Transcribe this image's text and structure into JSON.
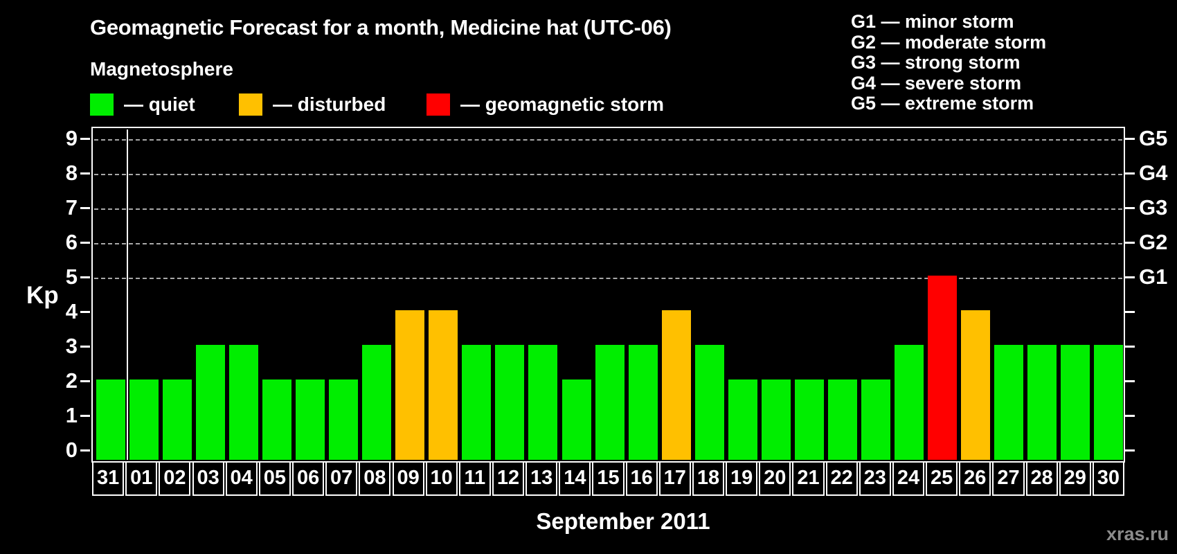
{
  "header": {
    "title": "Geomagnetic Forecast for a month, Medicine hat (UTC-06)"
  },
  "legend": {
    "heading": "Magnetosphere",
    "items": [
      {
        "key": "quiet",
        "label": "— quiet",
        "color": "#00ee00"
      },
      {
        "key": "disturbed",
        "label": "— disturbed",
        "color": "#ffc000"
      },
      {
        "key": "storm",
        "label": "— geomagnetic storm",
        "color": "#ff0000"
      }
    ]
  },
  "storm_scale_legend": {
    "items": [
      "G1 — minor storm",
      "G2 — moderate storm",
      "G3 — strong storm",
      "G4 — severe storm",
      "G5 — extreme storm"
    ]
  },
  "watermark": "xras.ru",
  "chart_data": {
    "type": "bar",
    "title": "Geomagnetic Forecast for a month, Medicine hat (UTC-06)",
    "xlabel": "September 2011",
    "ylabel": "Kp",
    "ylim": [
      0,
      9
    ],
    "y_ticks": [
      0,
      1,
      2,
      3,
      4,
      5,
      6,
      7,
      8,
      9
    ],
    "gridlines_at": [
      5,
      6,
      7,
      8,
      9
    ],
    "grid_style": "dashed horizontal lines at storm levels only",
    "right_axis_labels": [
      {
        "value": 5,
        "label": "G1"
      },
      {
        "value": 6,
        "label": "G2"
      },
      {
        "value": 7,
        "label": "G3"
      },
      {
        "value": 8,
        "label": "G4"
      },
      {
        "value": 9,
        "label": "G5"
      }
    ],
    "categories": [
      "31",
      "01",
      "02",
      "03",
      "04",
      "05",
      "06",
      "07",
      "08",
      "09",
      "10",
      "11",
      "12",
      "13",
      "14",
      "15",
      "16",
      "17",
      "18",
      "19",
      "20",
      "21",
      "22",
      "23",
      "24",
      "25",
      "26",
      "27",
      "28",
      "29",
      "30"
    ],
    "values": [
      2,
      2,
      2,
      3,
      3,
      2,
      2,
      2,
      3,
      4,
      4,
      3,
      3,
      3,
      2,
      3,
      3,
      4,
      3,
      2,
      2,
      2,
      2,
      2,
      3,
      5,
      4,
      3,
      3,
      3,
      3
    ],
    "statuses": [
      "quiet",
      "quiet",
      "quiet",
      "quiet",
      "quiet",
      "quiet",
      "quiet",
      "quiet",
      "quiet",
      "disturbed",
      "disturbed",
      "quiet",
      "quiet",
      "quiet",
      "quiet",
      "quiet",
      "quiet",
      "disturbed",
      "quiet",
      "quiet",
      "quiet",
      "quiet",
      "quiet",
      "quiet",
      "quiet",
      "storm",
      "disturbed",
      "quiet",
      "quiet",
      "quiet",
      "quiet"
    ],
    "colors": {
      "quiet": "#00ee00",
      "disturbed": "#ffc000",
      "storm": "#ff0000"
    },
    "month_separator_after_category": "31",
    "legend_position": "top-left"
  }
}
